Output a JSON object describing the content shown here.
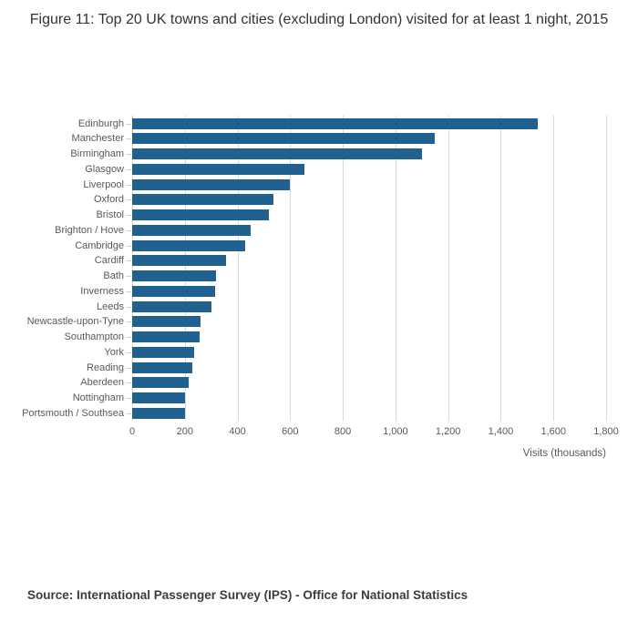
{
  "title": "Figure 11: Top 20 UK towns and cities (excluding London) visited for at least 1 night, 2015",
  "source": "Source: International Passenger Survey (IPS) - Office for National Statistics",
  "colors": {
    "bar": "#20618f",
    "gridline": "#d9d9d9",
    "axis_text": "#595959",
    "title_text": "#333333"
  },
  "chart_data": {
    "type": "bar",
    "orientation": "horizontal",
    "title": "Figure 11: Top 20 UK towns and cities (excluding London) visited for at least 1 night, 2015",
    "categories": [
      "Edinburgh",
      "Manchester",
      "Birmingham",
      "Glasgow",
      "Liverpool",
      "Oxford",
      "Bristol",
      "Brighton / Hove",
      "Cambridge",
      "Cardiff",
      "Bath",
      "Inverness",
      "Leeds",
      "Newcastle-upon-Tyne",
      "Southampton",
      "York",
      "Reading",
      "Aberdeen",
      "Nottingham",
      "Portsmouth / Southsea"
    ],
    "values": [
      1540,
      1150,
      1100,
      655,
      600,
      535,
      520,
      450,
      430,
      355,
      320,
      315,
      300,
      260,
      255,
      235,
      230,
      215,
      200,
      200
    ],
    "xlabel": "Visits (thousands)",
    "ylabel": "",
    "xlim": [
      0,
      1800
    ],
    "xticks": [
      0,
      200,
      400,
      600,
      800,
      1000,
      1200,
      1400,
      1600,
      1800
    ],
    "xtick_labels": [
      "0",
      "200",
      "400",
      "600",
      "800",
      "1,000",
      "1,200",
      "1,400",
      "1,600",
      "1,800"
    ],
    "grid": true,
    "legend": "none"
  }
}
